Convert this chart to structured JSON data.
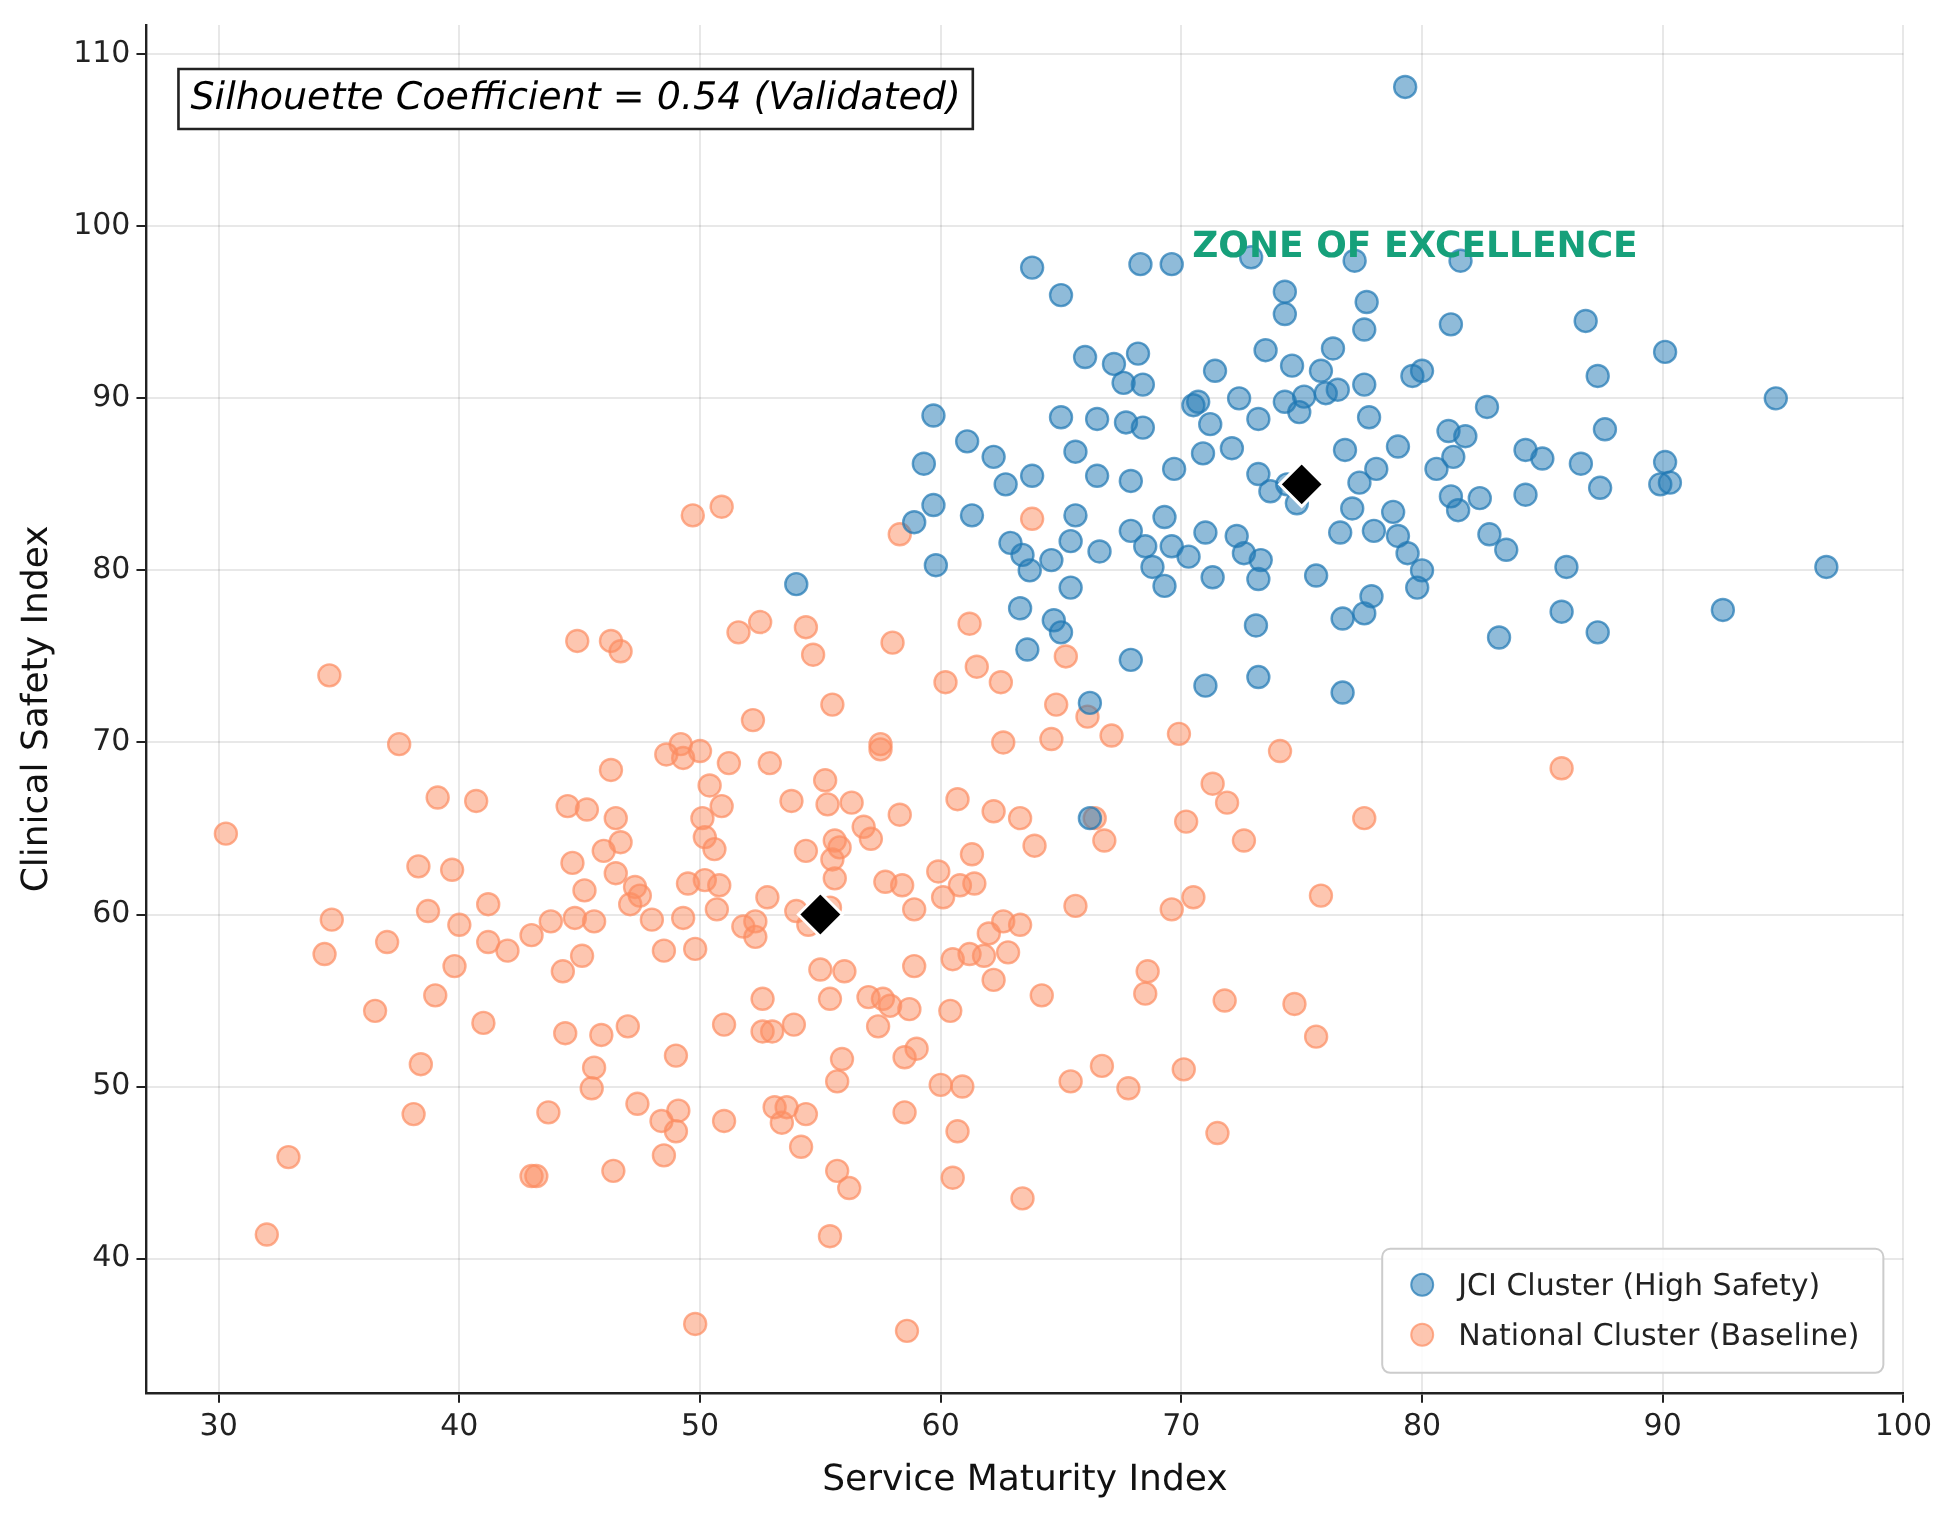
{
  "chart_data": {
    "type": "scatter",
    "xlabel": "Service Maturity Index",
    "ylabel": "Clinical Safety Index",
    "xlim": [
      27,
      100
    ],
    "ylim": [
      32.2,
      111.7
    ],
    "xticks": [
      30,
      40,
      50,
      60,
      70,
      80,
      90,
      100
    ],
    "yticks": [
      40,
      50,
      60,
      70,
      80,
      90,
      100,
      110
    ],
    "grid": true,
    "legend": "bottom right",
    "marker": "circle",
    "annotations": [
      "Silhouette Coefficient = 0.54 (Validated)",
      "ZONE OF EXCELLENCE"
    ],
    "series": [
      {
        "name": "JCI Cluster (High Safety)",
        "color": "#1f77b4",
        "x": [
          79.3,
          63.8,
          65.0,
          68.3,
          69.6,
          72.9,
          77.2,
          81.6,
          66.0,
          68.2,
          74.3,
          77.7,
          74.3,
          77.6,
          81.2,
          86.8,
          90.1,
          94.7,
          67.2,
          67.6,
          68.4,
          70.7,
          71.4,
          73.5,
          74.6,
          75.8,
          76.3,
          75.1,
          76.0,
          77.6,
          79.6,
          80.0,
          87.3,
          59.7,
          61.1,
          62.2,
          65.0,
          66.5,
          67.7,
          68.4,
          70.5,
          71.2,
          72.4,
          73.2,
          74.3,
          74.9,
          76.5,
          77.8,
          79.0,
          81.1,
          81.8,
          82.7,
          84.3,
          87.6,
          59.3,
          62.7,
          63.8,
          65.6,
          66.5,
          67.9,
          69.7,
          70.9,
          72.1,
          73.2,
          73.7,
          74.4,
          76.8,
          78.1,
          80.6,
          81.3,
          82.4,
          84.3,
          86.6,
          87.4,
          89.9,
          90.1,
          90.3,
          58.9,
          59.7,
          61.3,
          62.9,
          63.4,
          64.6,
          65.4,
          65.6,
          66.6,
          67.9,
          68.5,
          69.3,
          69.6,
          70.3,
          71.0,
          72.3,
          72.6,
          73.2,
          74.8,
          76.6,
          77.1,
          77.4,
          78.0,
          78.8,
          79.0,
          79.4,
          80.0,
          81.2,
          81.5,
          82.8,
          83.5,
          85.0,
          86.0,
          59.8,
          63.7,
          64.7,
          65.4,
          67.9,
          68.8,
          69.3,
          71.3,
          73.3,
          75.6,
          76.7,
          77.6,
          77.9,
          79.8,
          83.2,
          85.8,
          87.3,
          92.5,
          96.8,
          54.0,
          63.6,
          63.3,
          66.2,
          71.0,
          73.2,
          76.7,
          73.1,
          66.2,
          65.0
        ],
        "values": [
          108.1,
          97.6,
          96.0,
          97.8,
          97.8,
          98.2,
          98.0,
          98.0,
          92.4,
          92.6,
          96.2,
          95.6,
          94.9,
          94.0,
          94.3,
          94.5,
          92.7,
          90.0,
          92.0,
          90.9,
          90.8,
          89.8,
          91.6,
          92.8,
          91.9,
          91.6,
          92.9,
          90.1,
          90.3,
          90.8,
          91.3,
          91.6,
          91.3,
          89.0,
          87.5,
          86.6,
          88.9,
          88.8,
          88.6,
          88.3,
          89.6,
          88.5,
          90.0,
          88.8,
          89.8,
          89.2,
          90.5,
          88.9,
          87.2,
          88.1,
          87.8,
          89.5,
          87.0,
          88.2,
          86.2,
          85.0,
          85.5,
          86.9,
          85.5,
          85.2,
          85.9,
          86.8,
          87.1,
          85.6,
          84.6,
          85.0,
          87.0,
          85.9,
          85.9,
          86.6,
          84.2,
          84.4,
          86.2,
          84.8,
          85.0,
          86.3,
          85.1,
          82.8,
          83.8,
          83.2,
          81.6,
          80.9,
          80.6,
          81.7,
          83.2,
          81.1,
          82.3,
          81.4,
          83.1,
          81.4,
          80.8,
          82.2,
          82.0,
          81.0,
          79.5,
          83.9,
          82.2,
          83.6,
          85.1,
          82.3,
          83.4,
          82.0,
          81.0,
          80.0,
          84.3,
          83.5,
          82.1,
          81.2,
          86.5,
          80.2,
          80.3,
          80.0,
          77.1,
          79.0,
          74.8,
          80.2,
          79.1,
          79.6,
          80.6,
          79.7,
          77.2,
          77.5,
          78.5,
          79.0,
          76.1,
          77.6,
          76.4,
          77.7,
          80.2,
          79.2,
          75.4,
          77.8,
          72.3,
          73.3,
          73.8,
          72.9,
          76.8,
          65.6,
          76.4
        ]
      },
      {
        "name": "National Cluster (Baseline)",
        "color": "#fc8d62",
        "x": [
          30.3,
          34.6,
          32.9,
          32.0,
          34.7,
          34.4,
          36.5,
          37.0,
          37.5,
          38.1,
          38.3,
          38.4,
          38.7,
          39.0,
          39.1,
          39.7,
          39.8,
          40.0,
          40.7,
          41.0,
          41.2,
          41.2,
          42.0,
          43.0,
          43.2,
          43.0,
          43.7,
          43.8,
          44.3,
          44.5,
          44.4,
          44.8,
          44.7,
          44.9,
          45.1,
          45.2,
          45.3,
          45.5,
          45.6,
          45.6,
          45.9,
          46.0,
          46.3,
          46.3,
          46.4,
          46.5,
          46.5,
          46.7,
          46.7,
          47.0,
          47.1,
          47.3,
          47.5,
          47.4,
          48.0,
          48.4,
          48.5,
          48.5,
          48.6,
          49.0,
          49.0,
          49.1,
          49.2,
          49.3,
          49.3,
          49.5,
          49.7,
          49.8,
          49.8,
          50.0,
          50.1,
          50.2,
          50.2,
          50.4,
          50.6,
          50.7,
          50.8,
          50.9,
          51.0,
          51.0,
          50.9,
          51.2,
          51.6,
          51.8,
          52.2,
          52.3,
          52.3,
          52.5,
          52.6,
          52.6,
          52.8,
          52.9,
          53.0,
          53.1,
          53.4,
          53.6,
          53.8,
          53.9,
          54.0,
          54.2,
          54.4,
          54.4,
          54.4,
          54.5,
          54.7,
          55.0,
          55.2,
          55.3,
          55.4,
          55.4,
          55.4,
          55.5,
          55.5,
          55.6,
          55.6,
          55.7,
          55.7,
          55.8,
          55.9,
          56.0,
          56.2,
          56.3,
          56.8,
          57.1,
          57.0,
          57.4,
          57.5,
          57.5,
          57.6,
          57.7,
          57.9,
          58.0,
          58.3,
          58.3,
          58.4,
          58.5,
          58.5,
          58.6,
          58.7,
          58.9,
          58.9,
          59.0,
          59.9,
          60.0,
          60.1,
          60.2,
          60.4,
          60.5,
          60.5,
          60.7,
          60.7,
          60.8,
          60.9,
          61.2,
          61.2,
          61.3,
          61.4,
          61.5,
          61.8,
          62.0,
          62.2,
          62.2,
          62.5,
          62.6,
          62.6,
          62.8,
          63.3,
          63.3,
          63.4,
          63.9,
          63.8,
          64.2,
          64.6,
          64.8,
          65.2,
          65.4,
          65.6,
          66.1,
          66.4,
          66.7,
          66.8,
          67.1,
          67.8,
          68.5,
          68.6,
          69.6,
          69.9,
          70.2,
          70.1,
          70.5,
          71.3,
          71.5,
          71.9,
          71.8,
          72.6,
          74.1,
          74.7,
          75.6,
          75.8,
          77.6,
          85.8
        ],
        "values": [
          64.7,
          73.9,
          45.9,
          41.4,
          59.7,
          57.7,
          54.4,
          58.4,
          69.9,
          48.4,
          62.8,
          51.3,
          60.2,
          55.3,
          66.8,
          62.6,
          57.0,
          59.4,
          66.6,
          53.7,
          58.4,
          60.6,
          57.9,
          44.8,
          44.8,
          58.8,
          48.5,
          59.6,
          56.7,
          66.3,
          53.1,
          59.8,
          63.0,
          75.9,
          57.6,
          61.4,
          66.1,
          49.9,
          51.1,
          59.6,
          53.0,
          63.7,
          68.4,
          75.9,
          45.1,
          65.6,
          62.4,
          64.2,
          75.3,
          53.5,
          60.6,
          61.6,
          61.1,
          49.0,
          59.7,
          48.0,
          46.0,
          57.9,
          69.3,
          47.4,
          51.8,
          48.6,
          69.9,
          69.1,
          59.8,
          61.8,
          83.2,
          58.0,
          36.2,
          69.5,
          65.6,
          64.5,
          62.0,
          67.5,
          63.8,
          60.3,
          61.7,
          66.3,
          53.6,
          48.0,
          83.7,
          68.8,
          76.4,
          59.3,
          71.3,
          59.6,
          58.7,
          77.0,
          53.2,
          55.1,
          61.0,
          68.8,
          53.2,
          48.8,
          47.9,
          48.8,
          66.6,
          53.6,
          60.2,
          46.5,
          48.4,
          76.7,
          63.7,
          59.4,
          75.1,
          56.8,
          67.8,
          66.4,
          60.4,
          55.1,
          41.3,
          63.2,
          72.2,
          64.3,
          62.1,
          50.3,
          45.1,
          63.9,
          51.6,
          56.7,
          44.1,
          66.5,
          65.1,
          64.4,
          55.2,
          53.5,
          69.6,
          69.9,
          55.1,
          61.9,
          54.7,
          75.8,
          65.8,
          82.1,
          61.7,
          48.5,
          51.7,
          35.8,
          54.5,
          60.3,
          57.0,
          52.2,
          62.5,
          50.1,
          61.0,
          73.5,
          54.4,
          57.4,
          44.7,
          47.4,
          66.7,
          61.7,
          50.0,
          57.7,
          76.9,
          63.5,
          61.8,
          74.4,
          57.6,
          58.9,
          56.2,
          66.0,
          73.5,
          70.0,
          59.6,
          57.8,
          59.4,
          65.6,
          43.5,
          64.0,
          83.0,
          55.3,
          70.2,
          72.2,
          75.0,
          50.3,
          60.5,
          71.5,
          65.6,
          51.2,
          64.3,
          70.4,
          49.9,
          55.4,
          56.7,
          60.3,
          70.5,
          65.4,
          51.0,
          61.0,
          67.6,
          47.3,
          66.5,
          55.0,
          64.3,
          69.5,
          54.8,
          52.9,
          61.1,
          65.6,
          68.5
        ]
      },
      {
        "color": "#000000",
        "marker": "diamond",
        "x": [
          75,
          55
        ],
        "values": [
          85,
          60
        ]
      }
    ]
  }
}
